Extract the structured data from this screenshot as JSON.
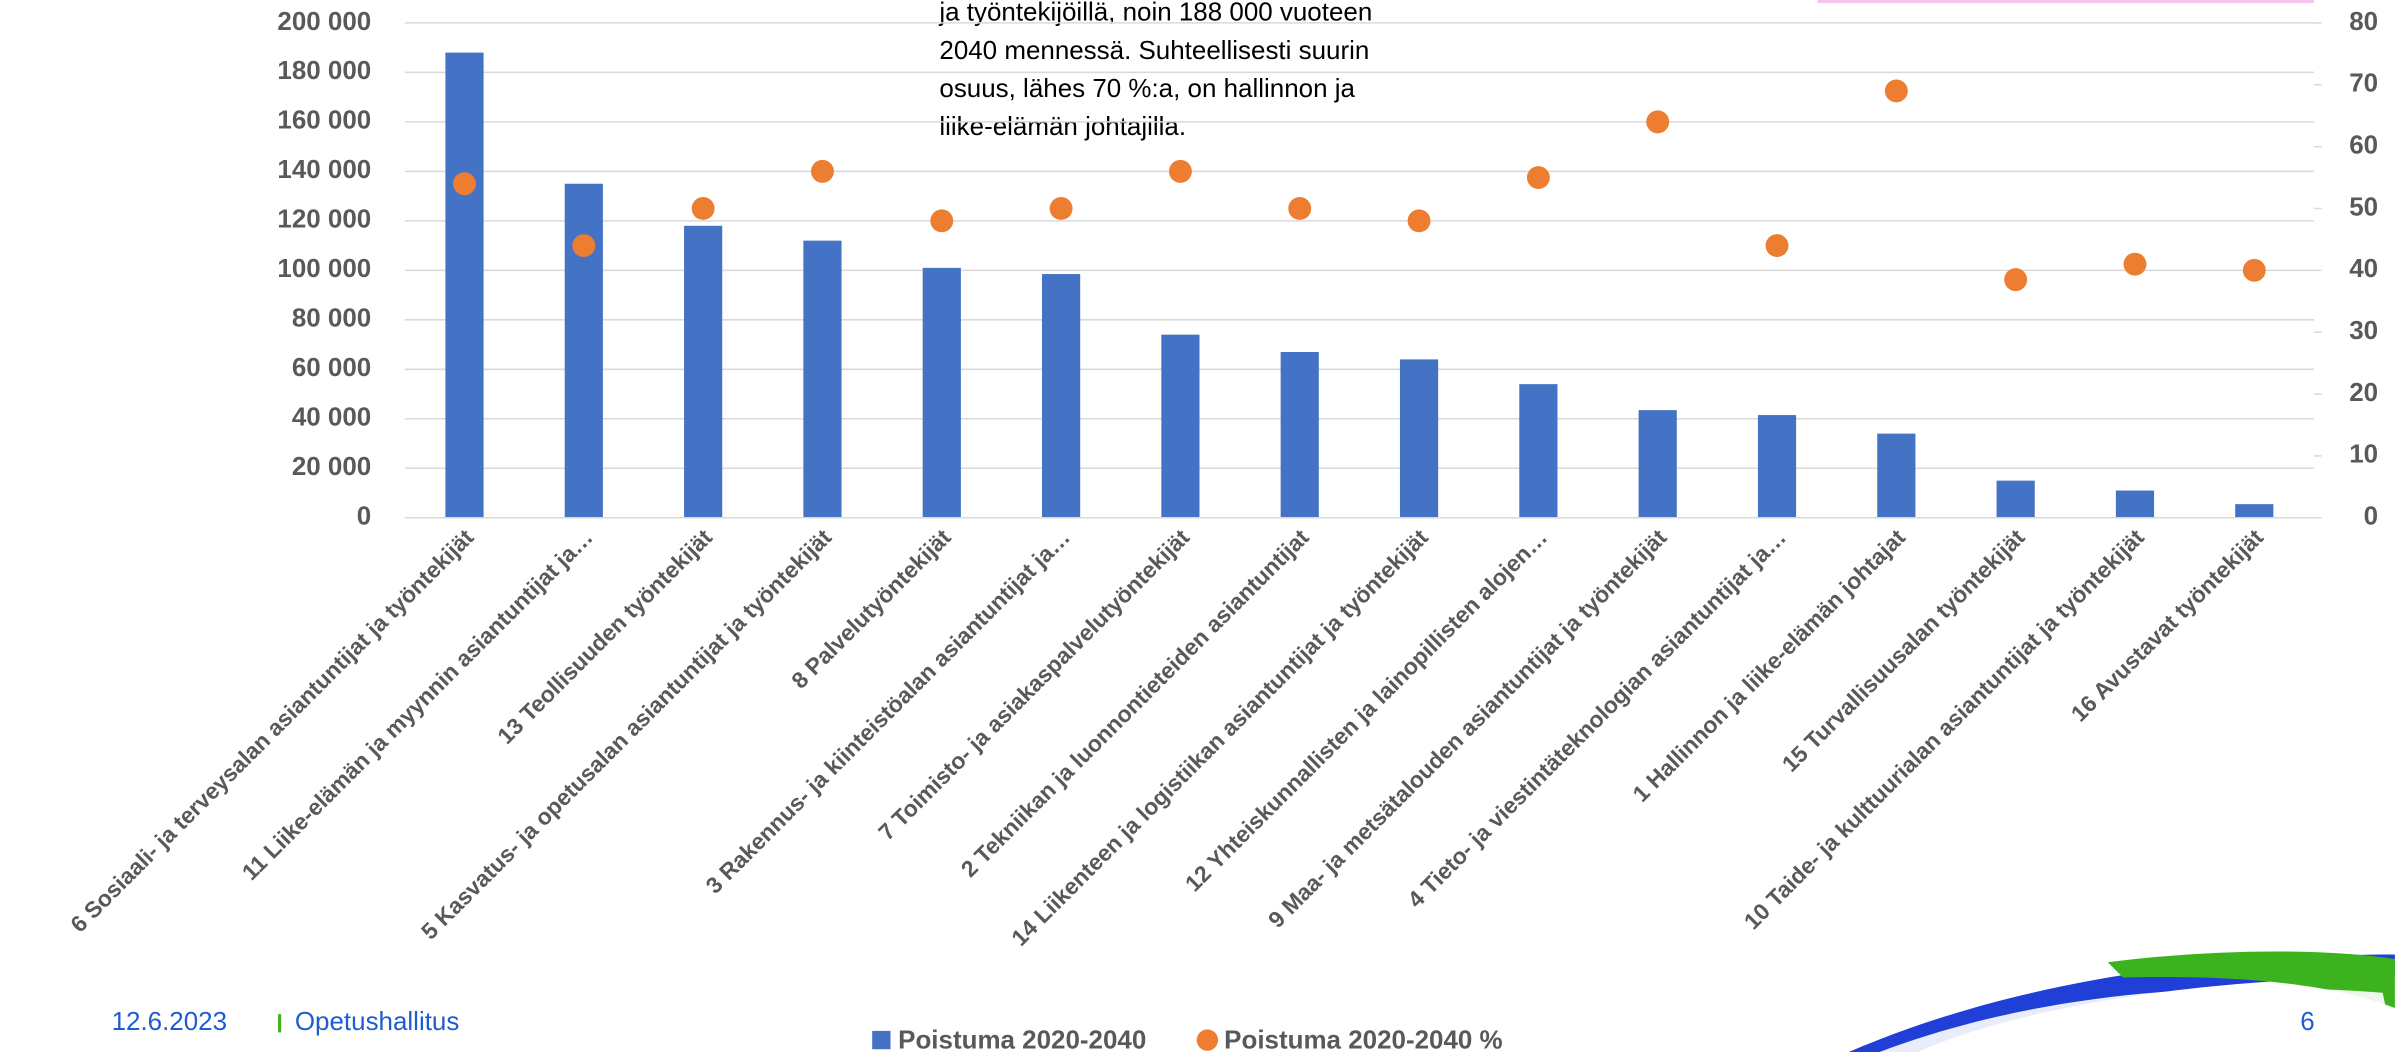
{
  "chart_data": {
    "type": "bar",
    "annotation": [
      "ja työntekijöillä, noin 188 000 vuoteen",
      "2040 mennessä. Suhteellisesti suurin",
      "osuus, lähes 70 %:a, on hallinnon ja",
      "liike-elämän johtajilla."
    ],
    "categories": [
      "6 Sosiaali- ja terveysalan asiantuntijat ja työntekijät",
      "11 Liike-elämän ja myynnin asiantuntijat ja…",
      "13 Teollisuuden työntekijät",
      "5 Kasvatus- ja opetusalan asiantuntijat ja työntekijät",
      "8 Palvelutyöntekijät",
      "3 Rakennus- ja kiinteistöalan asiantuntijat ja…",
      "7 Toimisto- ja asiakaspalvelutyöntekijät",
      "2 Tekniikan ja luonnontieteiden asiantuntijat",
      "14 Liikenteen ja logistiikan asiantuntijat ja työntekijät",
      "12 Yhteiskunnallisten ja lainopillisten alojen…",
      "9 Maa- ja metsätalouden asiantuntijat ja työntekijät",
      "4 Tieto- ja viestintäteknologian asiantuntijat ja…",
      "1 Hallinnon ja liike-elämän johtajat",
      "15 Turvallisuusalan työntekijät",
      "10 Taide- ja kulttuurialan asiantuntijat ja työntekijät",
      "16 Avustavat työntekijät"
    ],
    "series": [
      {
        "name": "Poistuma 2020-2040",
        "type": "bar",
        "color": "#4472c4",
        "values": [
          188000,
          135000,
          118000,
          112000,
          101000,
          98500,
          74000,
          67000,
          64000,
          54000,
          43500,
          41500,
          34000,
          15000,
          11000,
          5500
        ]
      },
      {
        "name": "Poistuma 2020-2040 %",
        "type": "scatter",
        "axis": "y2",
        "color": "#ed7d31",
        "values": [
          54,
          44,
          50,
          56,
          48,
          50,
          56,
          50,
          48,
          55,
          64,
          44,
          69,
          38.5,
          41,
          40
        ]
      }
    ],
    "ylim": [
      0,
      200000
    ],
    "yticks": [
      0,
      {
        "value": 20000,
        "label": "20 000"
      },
      {
        "value": 40000,
        "label": "40 000"
      },
      {
        "value": 60000,
        "label": "60 000"
      },
      {
        "value": 80000,
        "label": "80 000"
      },
      {
        "value": 100000,
        "label": "100 000"
      },
      {
        "value": 120000,
        "label": "120 000"
      },
      {
        "value": 140000,
        "label": "140 000"
      },
      {
        "value": 160000,
        "label": "160 000"
      },
      {
        "value": 180000,
        "label": "180 000"
      },
      {
        "value": 200000,
        "label": "200 000"
      }
    ],
    "y2lim": [
      0,
      80
    ],
    "y2ticks": [
      0,
      10,
      20,
      30,
      40,
      50,
      60,
      70,
      80
    ],
    "grid": true,
    "legend": "bottom"
  },
  "footer": {
    "date": "12.6.2023",
    "organization": "Opetushallitus",
    "page": "6"
  }
}
